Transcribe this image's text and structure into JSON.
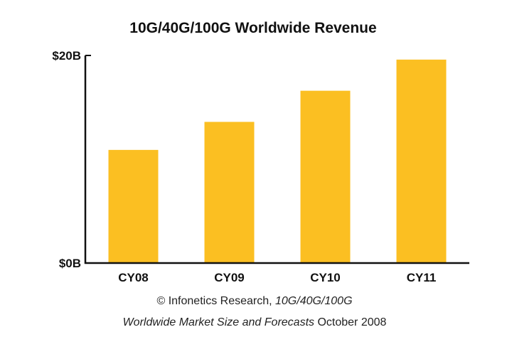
{
  "chart_data": {
    "type": "bar",
    "title": "10G/40G/100G Worldwide Revenue",
    "categories": [
      "CY08",
      "CY09",
      "CY10",
      "CY11"
    ],
    "values": [
      10.9,
      13.6,
      16.6,
      19.6
    ],
    "unit": "billion USD",
    "ylim": [
      0,
      20
    ],
    "yticks": [
      {
        "value": 0,
        "label": "$0B"
      },
      {
        "value": 20,
        "label": "$20B"
      }
    ],
    "xlabel": "",
    "ylabel": "",
    "grid": false,
    "legend": "none",
    "bar_color": "#FBBF22"
  },
  "source": {
    "line1_plain": "© Infonetics Research, ",
    "line1_italic": "10G/40G/100G",
    "line2_italic": "Worldwide Market Size and Forecasts",
    "line2_plain": " October 2008"
  }
}
